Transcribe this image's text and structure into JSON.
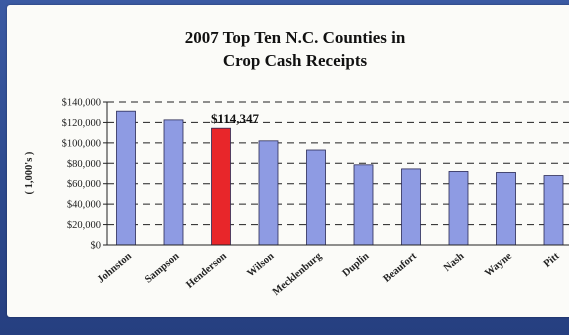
{
  "chart_data": {
    "type": "bar",
    "title": [
      "2007 Top Ten N.C. Counties in",
      "Crop Cash Receipts"
    ],
    "ylabel": "( 1,000's )",
    "categories": [
      "Johnston",
      "Sampson",
      "Henderson",
      "Wilson",
      "Mecklenburg",
      "Duplin",
      "Beaufort",
      "Nash",
      "Wayne",
      "Pitt"
    ],
    "values": [
      131000,
      122500,
      114347,
      102000,
      93000,
      78500,
      74500,
      72000,
      71000,
      68000
    ],
    "highlight_index": 2,
    "highlight_label": "$114,347",
    "ylim": [
      0,
      140000
    ],
    "yticks": [
      0,
      20000,
      40000,
      60000,
      80000,
      100000,
      120000,
      140000
    ],
    "ytick_labels": [
      "$0",
      "$20,000",
      "$40,000",
      "$60,000",
      "$80,000",
      "$100,000",
      "$120,000",
      "$140,000"
    ],
    "grid": "dashed horizontal",
    "colors": {
      "bar": "#8e9be3",
      "highlight": "#e8262a"
    }
  }
}
